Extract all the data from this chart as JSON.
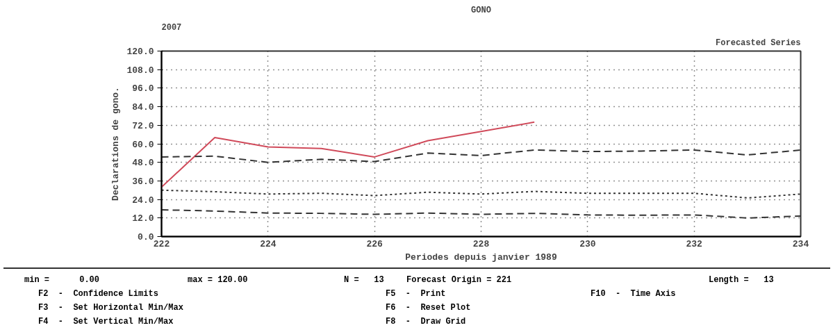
{
  "chart_data": {
    "type": "line",
    "title": "GONO",
    "xlabel": "Periodes depuis janvier 1989",
    "ylabel": "Declarations de gono.",
    "xlim": [
      222,
      234
    ],
    "xticks": [
      222,
      224,
      226,
      228,
      230,
      232,
      234
    ],
    "ylim": [
      0,
      120
    ],
    "yticks": [
      {
        "value": 0,
        "label": "0.0"
      },
      {
        "value": 12,
        "label": "12.0"
      },
      {
        "value": 24,
        "label": "24.0"
      },
      {
        "value": 36,
        "label": "36.0"
      },
      {
        "value": 48,
        "label": "48.0"
      },
      {
        "value": 60,
        "label": "60.0"
      },
      {
        "value": 72,
        "label": "72.0"
      },
      {
        "value": 84,
        "label": "84.0"
      },
      {
        "value": 96,
        "label": "96.0"
      },
      {
        "value": 108,
        "label": "108.0"
      },
      {
        "value": 120,
        "label": "120.0"
      }
    ],
    "grid": true,
    "marker": "none",
    "series": [
      {
        "color": "#d04a5a",
        "line_style": "solid",
        "x": [
          222,
          223,
          224,
          225,
          226,
          227,
          228,
          229
        ],
        "values": [
          32,
          64,
          58,
          57,
          51.5,
          62,
          68,
          74
        ]
      },
      {
        "color": "#333333",
        "line_style": "dashed",
        "x": [
          222,
          223,
          224,
          225,
          226,
          227,
          228,
          229,
          230,
          231,
          232,
          233,
          234
        ],
        "values": [
          51.5,
          52,
          48,
          50,
          48.5,
          54,
          52.4,
          56,
          55,
          55.3,
          56,
          52.8,
          56
        ]
      },
      {
        "color": "#333333",
        "line_style": "dotted",
        "x": [
          222,
          223,
          224,
          225,
          226,
          227,
          228,
          229,
          230,
          231,
          232,
          233,
          234
        ],
        "values": [
          30,
          29,
          27.5,
          28,
          26.5,
          28.7,
          27.5,
          29.2,
          28,
          28,
          28,
          25,
          27.5
        ]
      },
      {
        "color": "#333333",
        "line_style": "dashed",
        "x": [
          222,
          223,
          224,
          225,
          226,
          227,
          228,
          229,
          230,
          231,
          232,
          233,
          234
        ],
        "values": [
          17.3,
          16.5,
          15.2,
          15,
          14.4,
          15.2,
          14.4,
          15,
          14,
          13.8,
          14,
          12,
          13.3
        ]
      }
    ],
    "annotations": [
      "Forecasted Series",
      "2007",
      "min =      0.00",
      "max = 120.00",
      "N =   13",
      "Forecast Origin = 221",
      "Length =   13",
      "F2  -  Confidence Limits",
      "F5  -  Print",
      "F10  -  Time Axis",
      "F3  -  Set Horizontal Min/Max",
      "F6  -  Reset Plot",
      "F4  -  Set Vertical Min/Max",
      "F8  -  Draw Grid"
    ]
  }
}
